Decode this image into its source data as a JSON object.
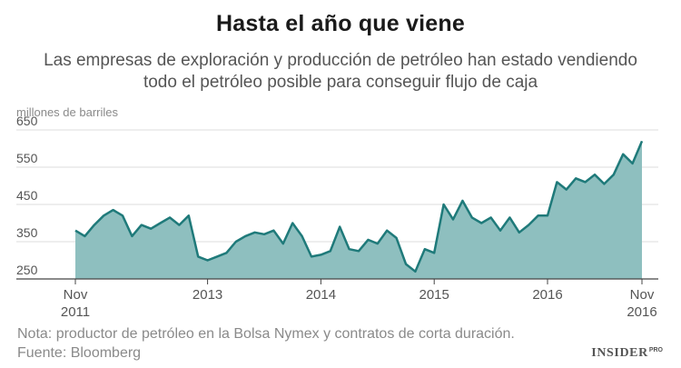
{
  "header": {
    "title": "Hasta el año que viene",
    "subtitle": "Las empresas de exploración y producción de petróleo han estado vendiendo todo el petróleo posible para conseguir flujo de caja"
  },
  "footer": {
    "note": "Nota: productor de petróleo en la Bolsa Nymex y contratos de corta duración.",
    "source": "Fuente: Bloomberg"
  },
  "brand": {
    "name": "INSIDER",
    "suffix": "PRO"
  },
  "colors": {
    "fill": "#8ebfbf",
    "line": "#1f7a7a",
    "grid": "#dddddd",
    "axis": "#444444",
    "tick_text": "#555555"
  },
  "chart_data": {
    "type": "area",
    "ylabel": "millones de barriles",
    "ylim": [
      250,
      650
    ],
    "yticks": [
      250,
      350,
      450,
      550,
      650
    ],
    "xlim": [
      "2011-11",
      "2016-11"
    ],
    "xticks": [
      {
        "x": "2011-11",
        "lines": [
          "Nov",
          "2011"
        ]
      },
      {
        "x": "2013-01",
        "lines": [
          "2013"
        ]
      },
      {
        "x": "2014-01",
        "lines": [
          "2014"
        ]
      },
      {
        "x": "2015-01",
        "lines": [
          "2015"
        ]
      },
      {
        "x": "2016-01",
        "lines": [
          "2016"
        ]
      },
      {
        "x": "2016-11",
        "lines": [
          "Nov",
          "2016"
        ]
      }
    ],
    "grid": true,
    "series": [
      {
        "x": [
          "2011-11",
          "2011-12",
          "2012-01",
          "2012-02",
          "2012-03",
          "2012-04",
          "2012-05",
          "2012-06",
          "2012-07",
          "2012-08",
          "2012-09",
          "2012-10",
          "2012-11",
          "2012-12",
          "2013-01",
          "2013-02",
          "2013-03",
          "2013-04",
          "2013-05",
          "2013-06",
          "2013-07",
          "2013-08",
          "2013-09",
          "2013-10",
          "2013-11",
          "2013-12",
          "2014-01",
          "2014-02",
          "2014-03",
          "2014-04",
          "2014-05",
          "2014-06",
          "2014-07",
          "2014-08",
          "2014-09",
          "2014-10",
          "2014-11",
          "2014-12",
          "2015-01",
          "2015-02",
          "2015-03",
          "2015-04",
          "2015-05",
          "2015-06",
          "2015-07",
          "2015-08",
          "2015-09",
          "2015-10",
          "2015-11",
          "2015-12",
          "2016-01",
          "2016-02",
          "2016-03",
          "2016-04",
          "2016-05",
          "2016-06",
          "2016-07",
          "2016-08",
          "2016-09",
          "2016-10",
          "2016-11"
        ],
        "values": [
          380,
          365,
          395,
          420,
          435,
          420,
          365,
          395,
          385,
          400,
          415,
          395,
          420,
          310,
          300,
          310,
          320,
          350,
          365,
          375,
          370,
          380,
          345,
          400,
          365,
          310,
          315,
          325,
          390,
          330,
          325,
          355,
          345,
          380,
          360,
          290,
          270,
          330,
          320,
          450,
          410,
          460,
          415,
          400,
          415,
          380,
          415,
          375,
          395,
          420,
          420,
          510,
          490,
          520,
          510,
          530,
          505,
          530,
          585,
          560,
          620
        ]
      }
    ]
  }
}
